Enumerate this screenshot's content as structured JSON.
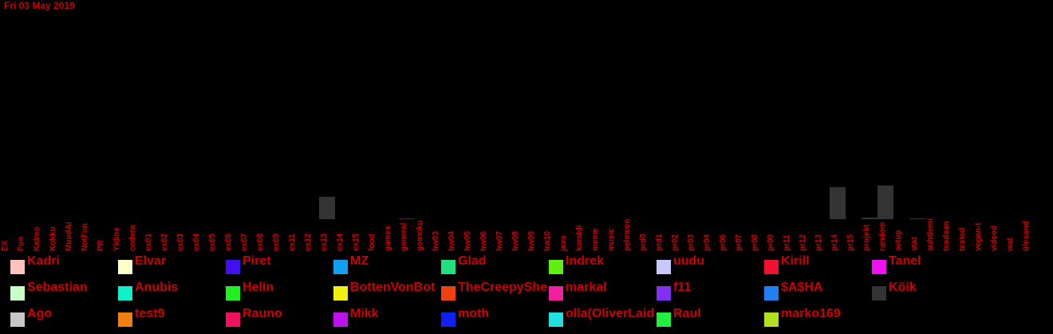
{
  "header": {
    "date": "Fri 03 May 2019"
  },
  "chart_data": {
    "type": "bar",
    "categories": [
      "EX",
      "Fun",
      "Kalmo",
      "Kokku",
      "MuudAi",
      "NotFun",
      "PR",
      "Yldine",
      "codera",
      "ex01",
      "ex02",
      "ex03",
      "ex04",
      "ex05",
      "ex06",
      "ex07",
      "ex08",
      "ex09",
      "ex11",
      "ex12",
      "ex13",
      "ex14",
      "ex15",
      "food",
      "games",
      "general",
      "gomoku",
      "hw03",
      "hw04",
      "hw05",
      "hw06",
      "hw07",
      "hw08",
      "hw09",
      "hw10",
      "java",
      "koraldi",
      "meme",
      "music",
      "pelmeen",
      "prd0",
      "prd1",
      "pr02",
      "pr03",
      "pr04",
      "pr06",
      "pr07",
      "pr08",
      "pr09",
      "pr11",
      "pr12",
      "pr13",
      "pr14",
      "pr15",
      "projekt",
      "random",
      "setup",
      "stat",
      "suhtlemi",
      "teadaan",
      "tested",
      "vegan-t",
      "videod",
      "wat",
      "ülesand"
    ],
    "values": [
      0,
      0,
      0,
      0,
      0,
      0,
      0,
      0,
      0,
      0,
      0,
      0,
      0,
      0,
      0,
      0,
      0,
      0,
      0,
      0,
      14,
      0,
      0,
      0,
      0,
      0.5,
      0,
      0,
      0,
      0,
      0,
      0,
      0,
      0,
      0,
      0,
      0,
      0,
      0,
      0,
      0,
      0,
      0,
      0,
      0,
      0,
      0,
      0,
      0,
      0,
      0,
      0,
      20,
      0,
      1,
      21,
      0,
      0.5,
      0,
      0,
      0,
      0,
      0,
      0,
      0
    ],
    "ylim": [
      0,
      130
    ],
    "bar_color": "#333333",
    "legend": [
      {
        "name": "Kadri",
        "color": "#ffc0c0"
      },
      {
        "name": "Elvar",
        "color": "#ffffc8"
      },
      {
        "name": "Piret",
        "color": "#4010f0"
      },
      {
        "name": "MZ",
        "color": "#10a0f0"
      },
      {
        "name": "Glad",
        "color": "#20e080"
      },
      {
        "name": "Indrek",
        "color": "#60f010"
      },
      {
        "name": "uudu",
        "color": "#c8c8ff"
      },
      {
        "name": "Kirill",
        "color": "#f01030"
      },
      {
        "name": "Tanel",
        "color": "#f010f0"
      },
      {
        "name": "Sebastian",
        "color": "#c8ffc8"
      },
      {
        "name": "Anubis",
        "color": "#10f0c8"
      },
      {
        "name": "Helin",
        "color": "#20f020"
      },
      {
        "name": "BottenVonBot",
        "color": "#f0f010"
      },
      {
        "name": "TheCreepySheep",
        "color": "#f04010"
      },
      {
        "name": "markal",
        "color": "#f020a0"
      },
      {
        "name": "f11",
        "color": "#8030f0"
      },
      {
        "name": "$A$HA",
        "color": "#2080f0"
      },
      {
        "name": "Köik",
        "color": "#333333"
      },
      {
        "name": "Ago",
        "color": "#c8c8c8"
      },
      {
        "name": "test9",
        "color": "#f08010"
      },
      {
        "name": "Rauno",
        "color": "#f01060"
      },
      {
        "name": "Mikk",
        "color": "#c010f0"
      },
      {
        "name": "moth",
        "color": "#1020f0"
      },
      {
        "name": "olla(OliverLaidma)",
        "color": "#20e0e0"
      },
      {
        "name": "Raul",
        "color": "#20f040"
      },
      {
        "name": "marko169",
        "color": "#b0e020"
      }
    ]
  }
}
